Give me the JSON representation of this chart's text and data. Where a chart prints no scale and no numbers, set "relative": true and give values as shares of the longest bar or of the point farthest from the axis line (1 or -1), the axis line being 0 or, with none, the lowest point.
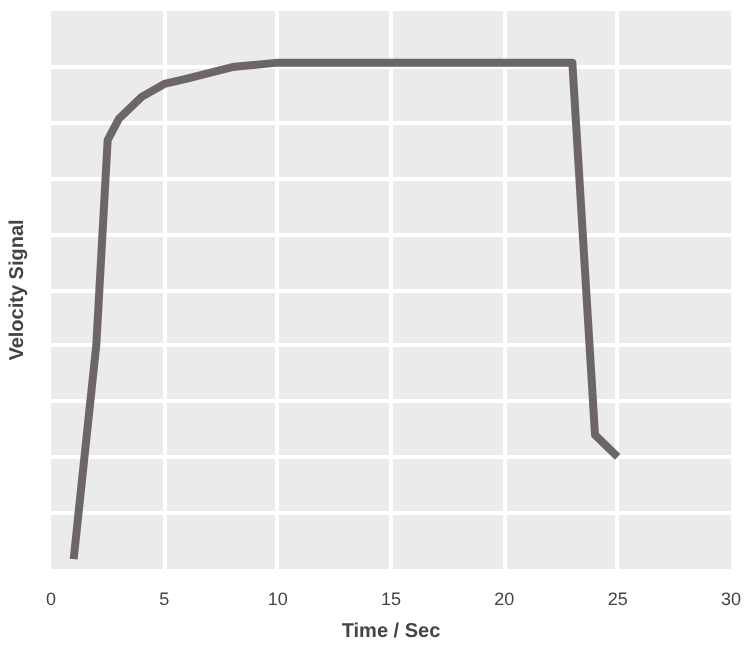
{
  "chart_data": {
    "type": "line",
    "xlabel": "Time / Sec",
    "ylabel": "Velocity Signal",
    "relative": true,
    "grid": true,
    "x": [
      1,
      2,
      2.5,
      3,
      4,
      5,
      6,
      8,
      10,
      23,
      24,
      25
    ],
    "series": [
      {
        "color": "#6d6667",
        "values": [
          0,
          0.432,
          0.844,
          0.887,
          0.931,
          0.957,
          0.968,
          0.991,
          1,
          1,
          0.25,
          0.206
        ]
      }
    ],
    "xlim": [
      0,
      30
    ],
    "xticks": [
      0,
      5,
      10,
      15,
      20,
      25,
      30
    ],
    "tick_labels": "x"
  }
}
